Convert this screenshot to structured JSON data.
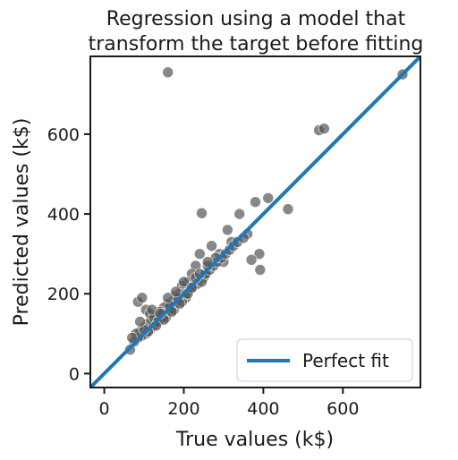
{
  "chart_data": {
    "type": "scatter",
    "title": [
      "Regression using a model that",
      "transform the target before fitting"
    ],
    "xlabel": "True values (k$)",
    "ylabel": "Predicted values (k$)",
    "xlim": [
      -35,
      795
    ],
    "ylim": [
      -35,
      795
    ],
    "xticks": [
      0,
      200,
      400,
      600
    ],
    "yticks": [
      0,
      200,
      400,
      600
    ],
    "xtick_labels": [
      "0",
      "200",
      "400",
      "600"
    ],
    "ytick_labels": [
      "0",
      "200",
      "400",
      "600"
    ],
    "grid": false,
    "legend_position": "lower-right",
    "legend": [
      "Perfect fit"
    ],
    "colors": {
      "points": "#555555",
      "line": "#1f77b4"
    },
    "series": [
      {
        "type": "scatter",
        "x": [
          160,
          750,
          540,
          553,
          245,
          340,
          380,
          412,
          462,
          392,
          390,
          370,
          320,
          300,
          290,
          250,
          255,
          240,
          270,
          230,
          220,
          210,
          215,
          200,
          205,
          195,
          190,
          185,
          180,
          175,
          170,
          165,
          160,
          155,
          150,
          145,
          140,
          135,
          130,
          125,
          120,
          115,
          110,
          105,
          100,
          95,
          90,
          85,
          80,
          75,
          70,
          65,
          85,
          95,
          105,
          115,
          125,
          135,
          145,
          155,
          165,
          175,
          185,
          195,
          205,
          215,
          225,
          235,
          245,
          255,
          265,
          275,
          285,
          295,
          305,
          315,
          325,
          335,
          360,
          350,
          310,
          280,
          260,
          230,
          210,
          190,
          170,
          150,
          130,
          110,
          100,
          90,
          120,
          140,
          160,
          180,
          200,
          220,
          240,
          260
        ],
        "y": [
          755,
          750,
          610,
          614,
          402,
          400,
          430,
          440,
          412,
          260,
          300,
          285,
          330,
          280,
          300,
          240,
          250,
          300,
          320,
          270,
          250,
          230,
          215,
          205,
          190,
          220,
          200,
          185,
          195,
          170,
          180,
          160,
          175,
          150,
          165,
          140,
          155,
          130,
          145,
          120,
          135,
          110,
          125,
          100,
          115,
          95,
          105,
          90,
          100,
          80,
          90,
          60,
          180,
          190,
          160,
          150,
          140,
          130,
          150,
          140,
          170,
          160,
          190,
          180,
          200,
          210,
          220,
          225,
          230,
          250,
          260,
          270,
          280,
          290,
          300,
          310,
          320,
          330,
          350,
          340,
          360,
          290,
          270,
          240,
          200,
          175,
          155,
          135,
          120,
          105,
          110,
          130,
          160,
          150,
          190,
          205,
          230,
          215,
          250,
          280
        ]
      },
      {
        "type": "line",
        "name": "Perfect fit",
        "x": [
          -35,
          795
        ],
        "y": [
          -35,
          795
        ]
      }
    ]
  }
}
